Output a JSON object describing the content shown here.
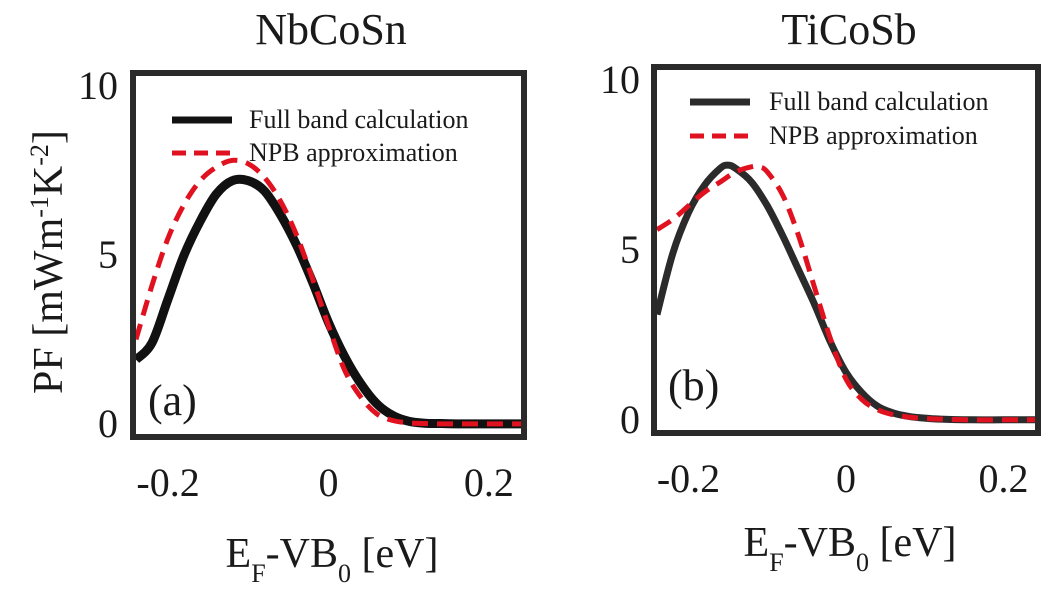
{
  "chart_data": [
    {
      "type": "line",
      "title": "NbCoSn",
      "panel_label": "(a)",
      "xlabel": {
        "main": "E",
        "sub1": "F",
        "mid": "-VB",
        "sub2": "0",
        "end": " [eV]"
      },
      "ylabel": {
        "p1": "PF [mWm",
        "sup1": "-1",
        "p2": "K",
        "sup2": "-2",
        "p3": "]"
      },
      "xlim": [
        -0.24,
        0.24
      ],
      "ylim": [
        -0.3,
        10.3
      ],
      "xticks": [
        -0.2,
        0,
        0.2
      ],
      "xtick_labels": [
        "-0.2",
        "0",
        "0.2"
      ],
      "yticks": [
        0,
        5,
        10
      ],
      "ytick_labels": [
        "0",
        "5",
        "10"
      ],
      "grid": false,
      "legend_position": "top-right",
      "series": [
        {
          "name": "Full band calculation",
          "color": "#111111",
          "style": "solid",
          "x": [
            -0.24,
            -0.22,
            -0.2,
            -0.18,
            -0.16,
            -0.14,
            -0.12,
            -0.1,
            -0.08,
            -0.06,
            -0.04,
            -0.02,
            0.0,
            0.02,
            0.04,
            0.06,
            0.08,
            0.1,
            0.12,
            0.14,
            0.16,
            0.18,
            0.2,
            0.24
          ],
          "y": [
            1.9,
            2.4,
            3.7,
            5.0,
            6.0,
            6.8,
            7.2,
            7.2,
            6.9,
            6.2,
            5.3,
            4.2,
            3.0,
            2.0,
            1.2,
            0.6,
            0.25,
            0.08,
            0.02,
            0.01,
            0.0,
            0.0,
            0.0,
            0.0
          ]
        },
        {
          "name": "NPB approximation",
          "color": "#e0121f",
          "style": "dashed",
          "x": [
            -0.24,
            -0.22,
            -0.2,
            -0.18,
            -0.16,
            -0.14,
            -0.12,
            -0.1,
            -0.08,
            -0.06,
            -0.04,
            -0.02,
            0.0,
            0.02,
            0.04,
            0.06,
            0.08,
            0.1,
            0.12,
            0.14,
            0.16,
            0.18,
            0.2,
            0.24
          ],
          "y": [
            2.5,
            4.1,
            5.5,
            6.5,
            7.2,
            7.6,
            7.8,
            7.7,
            7.3,
            6.6,
            5.6,
            4.3,
            2.9,
            1.6,
            0.8,
            0.3,
            0.1,
            0.03,
            0.01,
            0.0,
            0.0,
            0.0,
            0.0,
            0.0
          ]
        }
      ]
    },
    {
      "type": "line",
      "title": "TiCoSb",
      "panel_label": "(b)",
      "xlabel": {
        "main": "E",
        "sub1": "F",
        "mid": "-VB",
        "sub2": "0",
        "end": " [eV]"
      },
      "xlim": [
        -0.24,
        0.24
      ],
      "ylim": [
        -0.3,
        10.3
      ],
      "xticks": [
        -0.2,
        0,
        0.2
      ],
      "xtick_labels": [
        "-0.2",
        "0",
        "0.2"
      ],
      "yticks": [
        0,
        5,
        10
      ],
      "ytick_labels": [
        "0",
        "5",
        "10"
      ],
      "grid": false,
      "legend_position": "top-right",
      "series": [
        {
          "name": "Full band calculation",
          "color": "#2b2b2b",
          "style": "solid",
          "x": [
            -0.24,
            -0.22,
            -0.2,
            -0.18,
            -0.16,
            -0.15,
            -0.14,
            -0.12,
            -0.1,
            -0.08,
            -0.06,
            -0.04,
            -0.02,
            0.0,
            0.02,
            0.04,
            0.06,
            0.08,
            0.1,
            0.12,
            0.16,
            0.2,
            0.24
          ],
          "y": [
            3.1,
            4.9,
            6.1,
            6.9,
            7.4,
            7.5,
            7.4,
            7.0,
            6.3,
            5.4,
            4.4,
            3.4,
            2.3,
            1.4,
            0.8,
            0.4,
            0.2,
            0.1,
            0.05,
            0.02,
            0.0,
            0.0,
            0.0
          ]
        },
        {
          "name": "NPB approximation",
          "color": "#e0121f",
          "style": "dashed",
          "x": [
            -0.24,
            -0.22,
            -0.2,
            -0.18,
            -0.16,
            -0.14,
            -0.12,
            -0.11,
            -0.1,
            -0.08,
            -0.06,
            -0.04,
            -0.02,
            0.0,
            0.02,
            0.04,
            0.06,
            0.08,
            0.1,
            0.12,
            0.16,
            0.2,
            0.24
          ],
          "y": [
            5.6,
            5.9,
            6.3,
            6.7,
            7.0,
            7.3,
            7.45,
            7.45,
            7.3,
            6.6,
            5.4,
            3.9,
            2.4,
            1.2,
            0.6,
            0.3,
            0.15,
            0.08,
            0.04,
            0.02,
            0.0,
            0.0,
            0.0
          ]
        }
      ]
    }
  ]
}
